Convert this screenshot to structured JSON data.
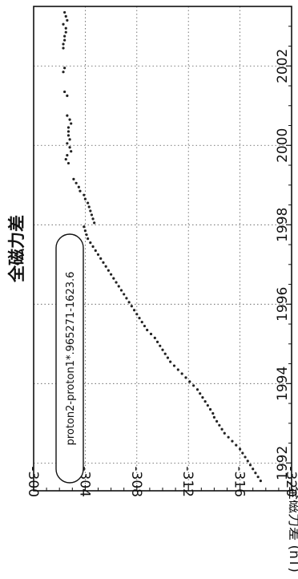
{
  "chart_data": {
    "type": "scatter",
    "orientation": "rotated-90-clockwise",
    "title": "全磁力差",
    "xlabel": "",
    "ylabel": "全磁力差 (nT)",
    "xlim": [
      1991.3,
      2003.5
    ],
    "ylim": [
      -320,
      -300
    ],
    "xticks": [
      1992,
      1994,
      1996,
      1998,
      2000,
      2002
    ],
    "yticks": [
      -300,
      -304,
      -308,
      -312,
      -316,
      -320
    ],
    "grid": true,
    "annotation": "proton2-proton1*.965271-1623.6",
    "series": [
      {
        "points": [
          [
            1991.55,
            -317.6
          ],
          [
            1991.65,
            -317.4
          ],
          [
            1991.75,
            -317.2
          ],
          [
            1991.85,
            -317.0
          ],
          [
            1991.95,
            -316.8
          ],
          [
            1992.05,
            -316.6
          ],
          [
            1992.15,
            -316.4
          ],
          [
            1992.25,
            -316.2
          ],
          [
            1992.35,
            -316.0
          ],
          [
            1992.45,
            -315.7
          ],
          [
            1992.55,
            -315.4
          ],
          [
            1992.65,
            -315.1
          ],
          [
            1992.75,
            -314.8
          ],
          [
            1992.85,
            -314.6
          ],
          [
            1992.95,
            -314.4
          ],
          [
            1993.05,
            -314.2
          ],
          [
            1993.15,
            -314.0
          ],
          [
            1993.25,
            -313.9
          ],
          [
            1993.35,
            -313.7
          ],
          [
            1993.45,
            -313.5
          ],
          [
            1993.55,
            -313.3
          ],
          [
            1993.65,
            -313.1
          ],
          [
            1993.75,
            -312.9
          ],
          [
            1993.85,
            -312.7
          ],
          [
            1993.95,
            -312.4
          ],
          [
            1994.05,
            -312.1
          ],
          [
            1994.15,
            -311.8
          ],
          [
            1994.25,
            -311.5
          ],
          [
            1994.35,
            -311.2
          ],
          [
            1994.45,
            -310.9
          ],
          [
            1994.55,
            -310.6
          ],
          [
            1994.65,
            -310.4
          ],
          [
            1994.75,
            -310.2
          ],
          [
            1994.85,
            -310.0
          ],
          [
            1994.95,
            -309.8
          ],
          [
            1995.05,
            -309.6
          ],
          [
            1995.15,
            -309.4
          ],
          [
            1995.25,
            -309.1
          ],
          [
            1995.35,
            -308.8
          ],
          [
            1995.45,
            -308.6
          ],
          [
            1995.55,
            -308.4
          ],
          [
            1995.65,
            -308.2
          ],
          [
            1995.75,
            -308.0
          ],
          [
            1995.85,
            -307.8
          ],
          [
            1995.95,
            -307.6
          ],
          [
            1996.05,
            -307.4
          ],
          [
            1996.15,
            -307.2
          ],
          [
            1996.25,
            -307.0
          ],
          [
            1996.35,
            -306.8
          ],
          [
            1996.45,
            -306.6
          ],
          [
            1996.55,
            -306.4
          ],
          [
            1996.65,
            -306.2
          ],
          [
            1996.75,
            -306.0
          ],
          [
            1996.85,
            -305.8
          ],
          [
            1996.95,
            -305.6
          ],
          [
            1997.05,
            -305.4
          ],
          [
            1997.15,
            -305.2
          ],
          [
            1997.25,
            -305.0
          ],
          [
            1997.35,
            -304.8
          ],
          [
            1997.45,
            -304.6
          ],
          [
            1997.55,
            -304.4
          ],
          [
            1997.65,
            -304.2
          ],
          [
            1997.75,
            -304.1
          ],
          [
            1997.85,
            -304.0
          ],
          [
            1997.95,
            -303.9
          ],
          [
            1998.05,
            -304.7
          ],
          [
            1998.15,
            -304.6
          ],
          [
            1998.25,
            -304.5
          ],
          [
            1998.35,
            -304.4
          ],
          [
            1998.45,
            -304.3
          ],
          [
            1998.55,
            -304.2
          ],
          [
            1998.65,
            -304.0
          ],
          [
            1998.75,
            -303.9
          ],
          [
            1998.85,
            -303.6
          ],
          [
            1998.95,
            -303.5
          ],
          [
            1999.05,
            -303.3
          ],
          [
            1999.15,
            -303.1
          ],
          [
            1999.55,
            -302.7
          ],
          [
            1999.65,
            -302.5
          ],
          [
            1999.75,
            -302.6
          ],
          [
            1999.85,
            -302.9
          ],
          [
            1999.95,
            -302.8
          ],
          [
            2000.05,
            -302.6
          ],
          [
            2000.15,
            -302.8
          ],
          [
            2000.25,
            -302.7
          ],
          [
            2000.35,
            -302.7
          ],
          [
            2000.45,
            -302.7
          ],
          [
            2000.55,
            -302.9
          ],
          [
            2000.65,
            -302.8
          ],
          [
            2000.75,
            -302.6
          ],
          [
            2001.25,
            -302.6
          ],
          [
            2001.35,
            -302.4
          ],
          [
            2001.85,
            -302.3
          ],
          [
            2001.95,
            -302.4
          ],
          [
            2002.45,
            -302.3
          ],
          [
            2002.55,
            -302.3
          ],
          [
            2002.65,
            -302.4
          ],
          [
            2002.75,
            -302.4
          ],
          [
            2002.85,
            -302.5
          ],
          [
            2002.95,
            -302.5
          ],
          [
            2003.05,
            -302.3
          ],
          [
            2003.15,
            -302.6
          ],
          [
            2003.25,
            -302.5
          ],
          [
            2003.35,
            -302.4
          ]
        ]
      }
    ]
  }
}
